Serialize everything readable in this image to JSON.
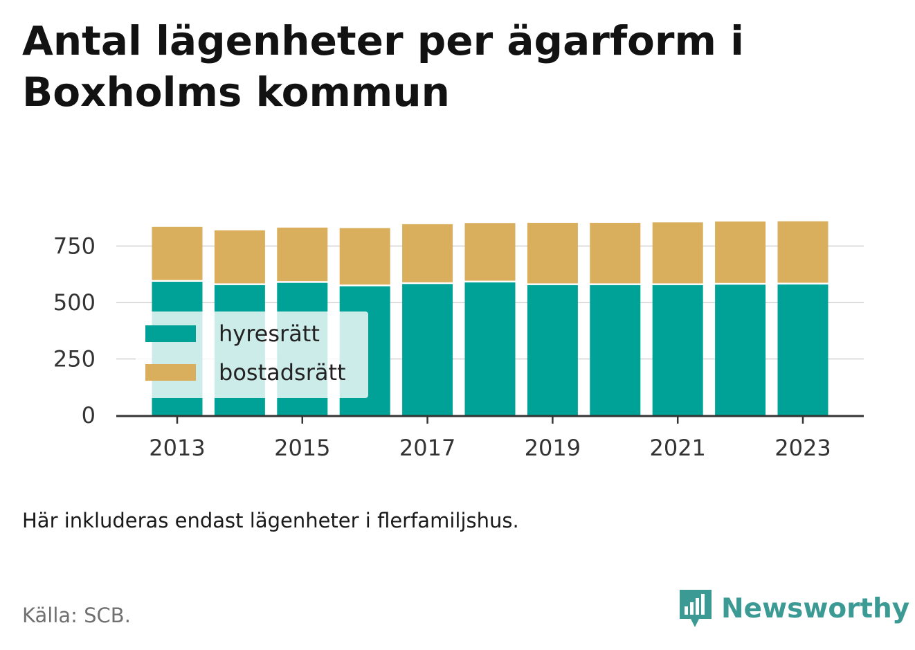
{
  "title": "Antal lägenheter per ägarform i Boxholms kommun",
  "note": "Här inkluderas endast lägenheter i flerfamiljshus.",
  "source": "Källa: SCB.",
  "brand": {
    "name": "Newsworthy",
    "logo_icon": "newsworthy-logo-icon",
    "color": "#3b9a93"
  },
  "chart_data": {
    "type": "bar",
    "stacked": true,
    "categories": [
      "2013",
      "2014",
      "2015",
      "2016",
      "2017",
      "2018",
      "2019",
      "2020",
      "2021",
      "2022",
      "2023"
    ],
    "x_tick_labels": [
      "2013",
      "2015",
      "2017",
      "2019",
      "2021",
      "2023"
    ],
    "series": [
      {
        "name": "hyresrätt",
        "color": "#00a197",
        "values": [
          595,
          580,
          590,
          575,
          585,
          592,
          580,
          580,
          580,
          582,
          583
        ]
      },
      {
        "name": "bostadsrätt",
        "color": "#d9ae5c",
        "values": [
          240,
          240,
          242,
          255,
          262,
          260,
          273,
          273,
          275,
          277,
          277
        ]
      }
    ],
    "y_ticks": [
      0,
      250,
      500,
      750
    ],
    "ylim": [
      0,
      870
    ],
    "grid": true,
    "legend_position": "bottom-left inside"
  }
}
